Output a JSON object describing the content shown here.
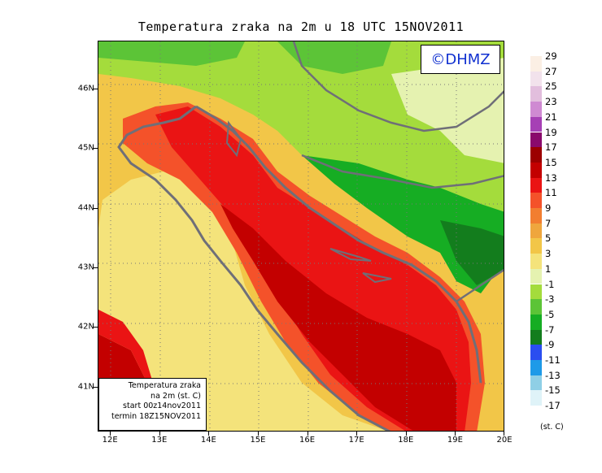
{
  "title": "Temperatura zraka na 2m u 18 UTC 15NOV2011",
  "watermark": "©DHMZ",
  "info_box": {
    "line1": "Temperatura zraka",
    "line2": "na 2m (st. C)",
    "line3": "start 00z14nov2011",
    "line4": "termin 18Z15NOV2011"
  },
  "map_data": {
    "lon_range": [
      11.75,
      20.0
    ],
    "lat_range": [
      40.25,
      46.8
    ],
    "lat_labels": [
      {
        "lat": 46,
        "text": "46N"
      },
      {
        "lat": 45,
        "text": "45N"
      },
      {
        "lat": 44,
        "text": "44N"
      },
      {
        "lat": 43,
        "text": "43N"
      },
      {
        "lat": 42,
        "text": "42N"
      },
      {
        "lat": 41,
        "text": "41N"
      }
    ],
    "lon_labels": [
      {
        "lon": 12,
        "text": "12E"
      },
      {
        "lon": 13,
        "text": "13E"
      },
      {
        "lon": 14,
        "text": "14E"
      },
      {
        "lon": 15,
        "text": "15E"
      },
      {
        "lon": 16,
        "text": "16E"
      },
      {
        "lon": 17,
        "text": "17E"
      },
      {
        "lon": 18,
        "text": "18E"
      },
      {
        "lon": 19,
        "text": "19E"
      },
      {
        "lon": 20,
        "text": "20E"
      }
    ]
  },
  "legend": {
    "unit": "(st. C)",
    "entries": [
      {
        "label": "29",
        "color": "#fbefe4"
      },
      {
        "label": "27",
        "color": "#f2e2ec"
      },
      {
        "label": "25",
        "color": "#e2bedd"
      },
      {
        "label": "23",
        "color": "#cf8ad2"
      },
      {
        "label": "21",
        "color": "#a640b5"
      },
      {
        "label": "19",
        "color": "#8a0a6c"
      },
      {
        "label": "17",
        "color": "#9c0000"
      },
      {
        "label": "15",
        "color": "#c30000"
      },
      {
        "label": "13",
        "color": "#ea1414"
      },
      {
        "label": "11",
        "color": "#f4522a"
      },
      {
        "label": "9",
        "color": "#f27e30"
      },
      {
        "label": "7",
        "color": "#efa63d"
      },
      {
        "label": "5",
        "color": "#f2c648"
      },
      {
        "label": "3",
        "color": "#f4e37b"
      },
      {
        "label": "1",
        "color": "#e5f2b0"
      },
      {
        "label": "-1",
        "color": "#a4dc3c"
      },
      {
        "label": "-3",
        "color": "#5cc437"
      },
      {
        "label": "-5",
        "color": "#16ad23"
      },
      {
        "label": "-7",
        "color": "#137d1d"
      },
      {
        "label": "-9",
        "color": "#2a4ef0"
      },
      {
        "label": "-11",
        "color": "#1e9ae8"
      },
      {
        "label": "-13",
        "color": "#8fcfe6"
      },
      {
        "label": "-15",
        "color": "#dff3f8"
      },
      {
        "label": "-17",
        "color": "#ffffff"
      }
    ]
  }
}
